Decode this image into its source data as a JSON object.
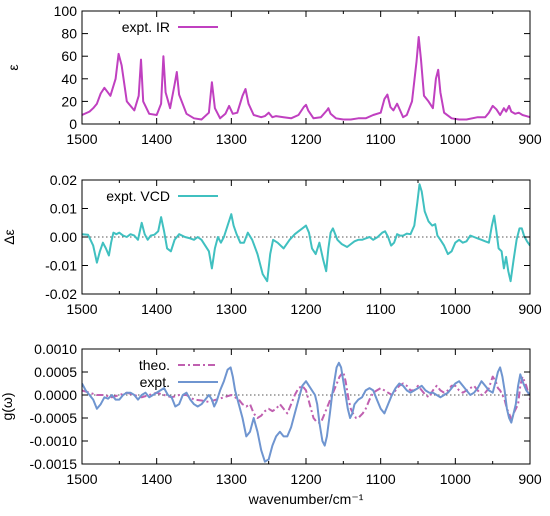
{
  "chart_data": [
    {
      "type": "line",
      "panel": "ir",
      "ylabel": "ε",
      "xlim": [
        1500,
        900
      ],
      "ylim": [
        0,
        100
      ],
      "xticks": [
        1500,
        1400,
        1300,
        1200,
        1100,
        1000,
        900
      ],
      "yticks": [
        0,
        20,
        40,
        60,
        80,
        100
      ],
      "ytick_labels": [
        "0",
        "20",
        "40",
        "60",
        "80",
        "100"
      ],
      "zero_line": false,
      "legend_position": "top-left",
      "series": [
        {
          "name": "expt.  IR",
          "color": "#c040c0",
          "dash": false,
          "x": [
            1500,
            1490,
            1485,
            1480,
            1475,
            1470,
            1462,
            1455,
            1451,
            1447,
            1440,
            1430,
            1424,
            1421,
            1418,
            1410,
            1400,
            1394,
            1391,
            1388,
            1382,
            1376,
            1373,
            1370,
            1360,
            1350,
            1340,
            1330,
            1326,
            1322,
            1315,
            1308,
            1303,
            1298,
            1292,
            1285,
            1281,
            1277,
            1270,
            1260,
            1255,
            1250,
            1245,
            1240,
            1230,
            1220,
            1210,
            1203,
            1200,
            1197,
            1190,
            1180,
            1172,
            1170,
            1167,
            1160,
            1150,
            1140,
            1130,
            1120,
            1110,
            1100,
            1095,
            1091,
            1087,
            1083,
            1078,
            1074,
            1070,
            1065,
            1058,
            1052,
            1049,
            1046,
            1042,
            1036,
            1030,
            1026,
            1023,
            1020,
            1015,
            1005,
            995,
            985,
            970,
            960,
            955,
            950,
            945,
            940,
            935,
            932,
            928,
            925,
            920,
            915,
            910,
            905,
            900
          ],
          "y": [
            8,
            11,
            14,
            18,
            27,
            32,
            25,
            40,
            62,
            52,
            20,
            12,
            25,
            57,
            20,
            9,
            8,
            18,
            60,
            28,
            14,
            35,
            46,
            26,
            9,
            5,
            4,
            10,
            37,
            14,
            5,
            9,
            16,
            9,
            10,
            25,
            31,
            18,
            8,
            6,
            7,
            10,
            6,
            7,
            6,
            5,
            8,
            15,
            17,
            12,
            5,
            6,
            12,
            14,
            9,
            5,
            4,
            4,
            5,
            5,
            8,
            10,
            22,
            26,
            15,
            12,
            18,
            12,
            6,
            8,
            20,
            55,
            77,
            57,
            25,
            20,
            14,
            40,
            48,
            28,
            10,
            5,
            4,
            4,
            6,
            6,
            10,
            16,
            13,
            8,
            14,
            11,
            16,
            11,
            9,
            10,
            8,
            7,
            6
          ]
        }
      ]
    },
    {
      "type": "line",
      "panel": "vcd",
      "ylabel": "Δε",
      "xlim": [
        1500,
        900
      ],
      "ylim": [
        -0.02,
        0.02
      ],
      "xticks": [
        1500,
        1400,
        1300,
        1200,
        1100,
        1000,
        900
      ],
      "yticks": [
        -0.02,
        -0.01,
        0,
        0.01,
        0.02
      ],
      "ytick_labels": [
        "-0.02",
        "-0.01",
        "0.00",
        "0.01",
        "0.02"
      ],
      "zero_line": true,
      "legend_position": "top-left",
      "series": [
        {
          "name": "expt. VCD",
          "color": "#40c0c0",
          "dash": false,
          "x": [
            1500,
            1492,
            1485,
            1480,
            1476,
            1472,
            1468,
            1464,
            1461,
            1458,
            1454,
            1450,
            1445,
            1440,
            1435,
            1430,
            1425,
            1420,
            1416,
            1412,
            1408,
            1403,
            1398,
            1394,
            1390,
            1386,
            1381,
            1376,
            1370,
            1362,
            1355,
            1350,
            1345,
            1340,
            1335,
            1330,
            1326,
            1322,
            1318,
            1314,
            1310,
            1305,
            1300,
            1297,
            1293,
            1288,
            1283,
            1278,
            1272,
            1265,
            1258,
            1252,
            1248,
            1244,
            1238,
            1230,
            1222,
            1215,
            1210,
            1205,
            1200,
            1196,
            1192,
            1187,
            1182,
            1177,
            1173,
            1170,
            1167,
            1164,
            1158,
            1152,
            1145,
            1140,
            1135,
            1130,
            1125,
            1120,
            1115,
            1110,
            1104,
            1098,
            1094,
            1090,
            1086,
            1082,
            1078,
            1074,
            1070,
            1065,
            1060,
            1055,
            1051,
            1048,
            1045,
            1041,
            1036,
            1031,
            1027,
            1024,
            1020,
            1015,
            1010,
            1005,
            1000,
            995,
            990,
            985,
            980,
            975,
            970,
            965,
            960,
            955,
            951,
            948,
            945,
            942,
            938,
            935,
            932,
            929,
            926,
            922,
            918,
            914,
            911,
            908,
            904,
            900
          ],
          "y": [
            0.001,
            0.0008,
            -0.003,
            -0.009,
            -0.005,
            -0.002,
            -0.004,
            -0.0065,
            -0.002,
            0.0015,
            0.001,
            0.0015,
            0.0005,
            0,
            0.001,
            0.0005,
            -0.001,
            0.005,
            0.001,
            -0.001,
            0.0005,
            0.0008,
            0.002,
            0.007,
            0.002,
            -0.004,
            -0.005,
            -0.001,
            0.001,
            0,
            -0.0005,
            -0.001,
            0,
            -0.001,
            -0.003,
            -0.005,
            -0.011,
            -0.004,
            0,
            -0.002,
            0,
            0.004,
            0.008,
            0.004,
            0.001,
            -0.002,
            -0.002,
            0.0015,
            -0.001,
            -0.006,
            -0.013,
            -0.0155,
            -0.006,
            -0.001,
            -0.002,
            -0.004,
            -0.001,
            0.001,
            0.002,
            0.003,
            0.004,
            0.0015,
            -0.004,
            -0.006,
            -0.002,
            -0.008,
            -0.012,
            -0.004,
            0.0015,
            0.003,
            -0.001,
            -0.0025,
            -0.0035,
            -0.0025,
            -0.0015,
            -0.001,
            -0.001,
            -0.0005,
            0,
            -0.001,
            0,
            0.0015,
            0.002,
            0,
            -0.003,
            -0.002,
            0.001,
            0.0005,
            0.0005,
            0.0012,
            0.001,
            0.004,
            0.012,
            0.0185,
            0.016,
            0.009,
            0.0055,
            0.004,
            0.0045,
            0.0005,
            -0.001,
            -0.003,
            -0.006,
            -0.005,
            -0.002,
            -0.001,
            -0.002,
            -0.0015,
            0.0005,
            0,
            -0.0005,
            -0.001,
            -0.0015,
            -0.002,
            0.004,
            0.0075,
            0.002,
            -0.004,
            -0.005,
            -0.011,
            -0.007,
            -0.012,
            -0.0155,
            -0.008,
            -0.001,
            0.003,
            0.003,
            0.0005,
            -0.0015,
            -0.003
          ]
        }
      ]
    },
    {
      "type": "line",
      "panel": "g",
      "ylabel": "g(ω)",
      "xlabel": "wavenumber/cm⁻¹",
      "xlim": [
        1500,
        900
      ],
      "ylim": [
        -0.0015,
        0.001
      ],
      "xticks": [
        1500,
        1400,
        1300,
        1200,
        1100,
        1000,
        900
      ],
      "yticks": [
        -0.0015,
        -0.001,
        -0.0005,
        0,
        0.0005,
        0.001
      ],
      "ytick_labels": [
        "-0.0015",
        "-0.0010",
        "-0.0005",
        "0.0000",
        "0.0005",
        "0.0010"
      ],
      "zero_line": true,
      "legend_position": "top-left",
      "series": [
        {
          "name": "theo.",
          "color": "#c060b0",
          "dash": true,
          "x": [
            1500,
            1490,
            1480,
            1470,
            1460,
            1450,
            1440,
            1430,
            1420,
            1410,
            1400,
            1390,
            1380,
            1370,
            1360,
            1350,
            1340,
            1330,
            1320,
            1310,
            1300,
            1295,
            1290,
            1285,
            1280,
            1275,
            1270,
            1265,
            1260,
            1255,
            1250,
            1245,
            1240,
            1235,
            1230,
            1225,
            1220,
            1215,
            1210,
            1205,
            1200,
            1195,
            1190,
            1185,
            1180,
            1175,
            1170,
            1165,
            1160,
            1155,
            1150,
            1147,
            1143,
            1140,
            1137,
            1133,
            1130,
            1127,
            1124,
            1120,
            1115,
            1110,
            1105,
            1100,
            1095,
            1090,
            1085,
            1080,
            1075,
            1070,
            1065,
            1060,
            1055,
            1050,
            1045,
            1040,
            1035,
            1030,
            1025,
            1020,
            1015,
            1010,
            1005,
            1000,
            995,
            990,
            985,
            980,
            975,
            970,
            965,
            960,
            955,
            950,
            946,
            943,
            940,
            937,
            934,
            931,
            928,
            925,
            922,
            919,
            916,
            913,
            910,
            905,
            900
          ],
          "y": [
            0.0001,
            5e-05,
            0,
            0,
            -5e-05,
            0,
            5e-05,
            0,
            -5e-05,
            0,
            5e-05,
            0,
            -5e-05,
            0,
            0,
            -0.0001,
            -0.00012,
            -0.00015,
            -0.0001,
            -5e-05,
            0,
            -5e-05,
            -0.0001,
            -0.0002,
            -0.00025,
            -0.0002,
            -0.0004,
            -0.0005,
            -0.00045,
            -0.00035,
            -0.0003,
            -0.00035,
            -0.0003,
            -0.0002,
            -0.0003,
            -0.0004,
            -0.0002,
            0,
            0.00015,
            0.0002,
            0.0001,
            -0.0002,
            -0.0005,
            -0.0006,
            -0.0006,
            -0.0004,
            -0.0002,
            0,
            0.0002,
            0.0004,
            0.0005,
            0.0003,
            -0.0001,
            -0.0003,
            -0.0004,
            -0.0005,
            -0.0005,
            -0.00045,
            -0.0004,
            -0.0003,
            -0.0001,
            5e-05,
            0.0001,
            0.00015,
            0.0001,
            5e-05,
            0,
            0.0001,
            0.0002,
            0.00025,
            0.0002,
            0.0001,
            0.0001,
            0.0002,
            0.0001,
            0,
            -5e-05,
            0.0001,
            0.0002,
            0.0001,
            5e-05,
            0.0001,
            0.0002,
            0.0002,
            0.0001,
            5e-05,
            0.0001,
            0.00015,
            0.0002,
            0.0001,
            0,
            5e-05,
            0.00015,
            0.0004,
            0.0003,
            0.00015,
            0.0001,
            0,
            -0.0001,
            -0.0003,
            -0.0004,
            -0.00055,
            -0.0004,
            -0.0003,
            -0.0002,
            0.0002,
            0.0004,
            0.0002,
            -0.0001
          ]
        },
        {
          "name": "expt.",
          "color": "#6f95d0",
          "dash": false,
          "x": [
            1500,
            1495,
            1490,
            1485,
            1480,
            1475,
            1470,
            1465,
            1460,
            1455,
            1450,
            1445,
            1440,
            1435,
            1430,
            1425,
            1420,
            1415,
            1410,
            1405,
            1400,
            1395,
            1390,
            1385,
            1380,
            1375,
            1370,
            1365,
            1360,
            1355,
            1350,
            1345,
            1340,
            1335,
            1330,
            1326,
            1323,
            1320,
            1315,
            1310,
            1305,
            1301,
            1298,
            1295,
            1290,
            1285,
            1280,
            1275,
            1270,
            1265,
            1260,
            1255,
            1250,
            1245,
            1240,
            1235,
            1230,
            1225,
            1220,
            1215,
            1210,
            1205,
            1200,
            1196,
            1192,
            1188,
            1185,
            1182,
            1178,
            1175,
            1172,
            1168,
            1165,
            1162,
            1159,
            1156,
            1153,
            1150,
            1147,
            1144,
            1141,
            1138,
            1135,
            1130,
            1125,
            1120,
            1115,
            1110,
            1105,
            1100,
            1095,
            1090,
            1085,
            1080,
            1075,
            1070,
            1065,
            1060,
            1055,
            1050,
            1045,
            1040,
            1035,
            1030,
            1025,
            1020,
            1015,
            1010,
            1005,
            1000,
            995,
            990,
            985,
            980,
            975,
            970,
            965,
            960,
            955,
            950,
            946,
            943,
            940,
            937,
            934,
            931,
            928,
            925,
            922,
            919,
            916,
            913,
            910,
            905,
            900
          ],
          "y": [
            0.00025,
            0.0001,
            0,
            -0.0001,
            -0.0003,
            -0.0002,
            -5e-05,
            -8e-05,
            0,
            -0.0001,
            -0.0001,
            0,
            5e-05,
            5e-05,
            0,
            -0.0001,
            0,
            5e-05,
            -5e-05,
            0,
            5e-05,
            0.0001,
            0.00015,
            0,
            -5e-05,
            -0.00025,
            -0.0002,
            0,
            5e-05,
            -0.0001,
            -0.0002,
            -0.00025,
            -0.0002,
            -0.0001,
            0,
            -0.0001,
            -0.00025,
            -0.00015,
            0.0001,
            0.0003,
            0.00055,
            0.0006,
            0.0004,
            0.0001,
            -0.0002,
            -0.0005,
            -0.0009,
            -0.0008,
            -0.0005,
            -0.0008,
            -0.0012,
            -0.00145,
            -0.0014,
            -0.0011,
            -0.0009,
            -0.0008,
            -0.0009,
            -0.0009,
            -0.0007,
            -0.0004,
            -0.0001,
            0.0002,
            0.0003,
            0.0002,
            0.0001,
            0,
            -0.0002,
            -0.0006,
            -0.001,
            -0.0011,
            -0.0009,
            -0.0004,
            0,
            0.0003,
            0.0006,
            0.0007,
            0.0006,
            0.0003,
            0,
            -0.0003,
            -0.0005,
            -0.0004,
            -0.0002,
            -0.0001,
            -5e-05,
            0.0001,
            0.00015,
            0.0001,
            -0.0001,
            -0.0003,
            -0.0004,
            -0.0002,
            0,
            0.00015,
            0.00025,
            0.0002,
            0.0001,
            5e-05,
            0.0001,
            0.00015,
            0.0002,
            0.0001,
            5e-05,
            5e-05,
            0,
            -5e-05,
            0,
            5e-05,
            0.00015,
            0.00025,
            0.0003,
            0.0002,
            0.0001,
            0,
            5e-05,
            0.00015,
            0.0003,
            0.0002,
            0.0001,
            5e-05,
            0.0003,
            0.0005,
            0.0006,
            0.0004,
            0.0001,
            -0.0003,
            -0.0005,
            -0.0006,
            -0.0004,
            -0.0002,
            0.0002,
            0.00045,
            0.0003,
            0.0001,
            0
          ]
        }
      ]
    }
  ]
}
